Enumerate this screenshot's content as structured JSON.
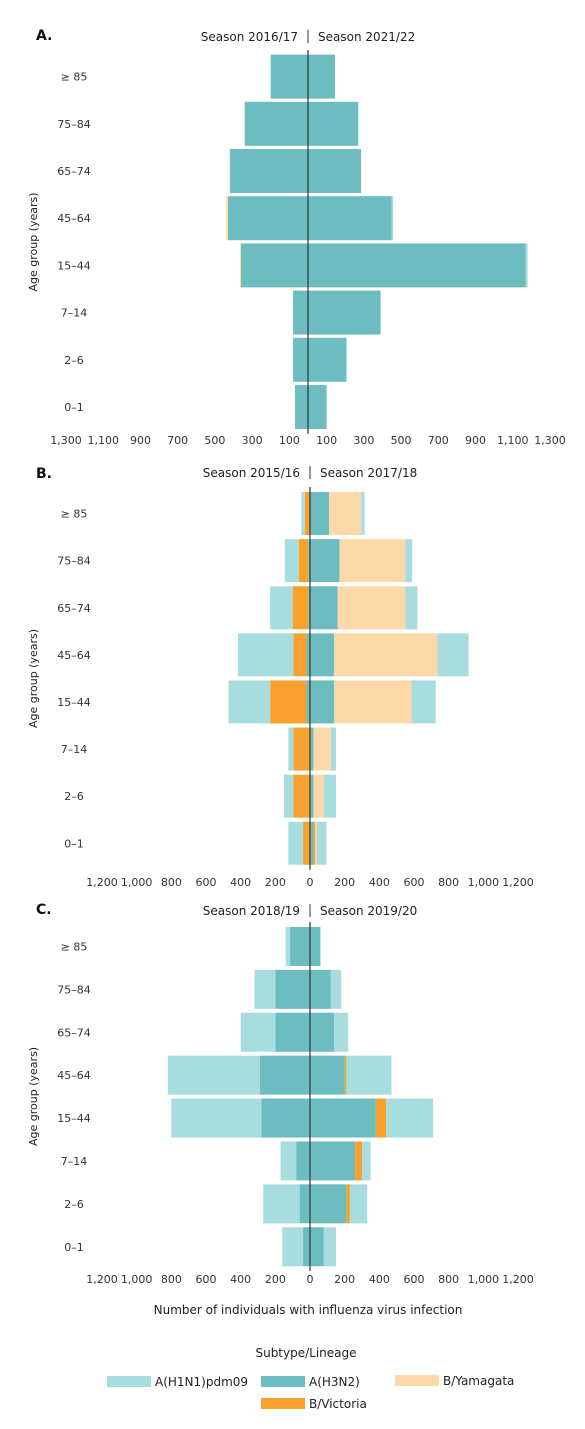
{
  "colors": {
    "A(H1N1)pdm09": "#a8dde0",
    "A(H3N2)": "#6dbdc0",
    "B/Victoria": "#f8a12e",
    "B/Yamagata": "#fdd8a8",
    "axis": "#333333"
  },
  "chart_data": [
    {
      "type": "bar",
      "panel": "A.",
      "left_title": "Season 2016/17",
      "right_title": "Season 2021/22",
      "ylabel": "Age group (years)",
      "xlabel": "",
      "xlim": [
        -1300,
        1300
      ],
      "tick_values": [
        -1300,
        -1100,
        -900,
        -700,
        -500,
        -300,
        -100,
        100,
        300,
        500,
        700,
        900,
        1100,
        1300
      ],
      "tick_labels": [
        "1,300",
        "1,100",
        "900",
        "700",
        "500",
        "300",
        "100",
        "100",
        "300",
        "500",
        "700",
        "900",
        "1,100",
        "1,300"
      ],
      "categories": [
        "≥ 85",
        "75–84",
        "65–74",
        "45–64",
        "15–44",
        "7–14",
        "2–6",
        "0–1"
      ],
      "series": [
        {
          "name": "A(H1N1)pdm09",
          "left": [
            0,
            0,
            0,
            0,
            0,
            0,
            0,
            0
          ],
          "right": [
            0,
            0,
            0,
            8,
            10,
            0,
            5,
            0
          ]
        },
        {
          "name": "A(H3N2)",
          "left": [
            200,
            340,
            420,
            430,
            360,
            80,
            80,
            70
          ],
          "right": [
            145,
            270,
            285,
            450,
            1170,
            390,
            205,
            100
          ]
        },
        {
          "name": "B/Victoria",
          "left": [
            0,
            0,
            0,
            0,
            0,
            0,
            0,
            0
          ],
          "right": [
            0,
            0,
            0,
            0,
            0,
            0,
            0,
            0
          ]
        },
        {
          "name": "B/Yamagata",
          "left": [
            0,
            0,
            0,
            10,
            5,
            0,
            0,
            0
          ],
          "right": [
            0,
            0,
            0,
            0,
            0,
            0,
            0,
            0
          ]
        }
      ]
    },
    {
      "type": "bar",
      "panel": "B.",
      "left_title": "Season 2015/16",
      "right_title": "Season 2017/18",
      "ylabel": "Age group (years)",
      "xlabel": "",
      "xlim": [
        -1200,
        1200
      ],
      "tick_values": [
        -1200,
        -1000,
        -800,
        -600,
        -400,
        -200,
        0,
        200,
        400,
        600,
        800,
        1000,
        1200
      ],
      "tick_labels": [
        "1,200",
        "1,000",
        "800",
        "600",
        "400",
        "200",
        "0",
        "200",
        "400",
        "600",
        "800",
        "1,000",
        "1,200"
      ],
      "categories": [
        "≥ 85",
        "75–84",
        "65–74",
        "45–64",
        "15–44",
        "7–14",
        "2–6",
        "0–1"
      ],
      "series": [
        {
          "name": "A(H1N1)pdm09",
          "left": [
            20,
            80,
            130,
            320,
            240,
            30,
            55,
            85
          ],
          "right": [
            20,
            40,
            70,
            180,
            140,
            30,
            70,
            55
          ]
        },
        {
          "name": "A(H3N2)",
          "left": [
            0,
            10,
            10,
            20,
            20,
            0,
            0,
            0
          ],
          "right": [
            110,
            170,
            160,
            140,
            140,
            20,
            20,
            20
          ]
        },
        {
          "name": "B/Victoria",
          "left": [
            30,
            55,
            90,
            75,
            210,
            95,
            95,
            40
          ],
          "right": [
            0,
            0,
            0,
            0,
            0,
            0,
            0,
            10
          ]
        },
        {
          "name": "B/Yamagata",
          "left": [
            0,
            0,
            0,
            0,
            0,
            0,
            0,
            0
          ],
          "right": [
            185,
            380,
            390,
            595,
            445,
            100,
            60,
            10
          ]
        }
      ]
    },
    {
      "type": "bar",
      "panel": "C.",
      "left_title": "Season 2018/19",
      "right_title": "Season 2019/20",
      "ylabel": "Age group (years)",
      "xlabel": "Number of individuals with influenza virus infection",
      "xlim": [
        -1200,
        1200
      ],
      "tick_values": [
        -1200,
        -1000,
        -800,
        -600,
        -400,
        -200,
        0,
        200,
        400,
        600,
        800,
        1000,
        1200
      ],
      "tick_labels": [
        "1,200",
        "1,000",
        "800",
        "600",
        "400",
        "200",
        "0",
        "200",
        "400",
        "600",
        "800",
        "1,000",
        "1,200"
      ],
      "categories": [
        "≥ 85",
        "75–84",
        "65–74",
        "45–64",
        "15–44",
        "7–14",
        "2–6",
        "0–1"
      ],
      "series": [
        {
          "name": "A(H1N1)pdm09",
          "left": [
            25,
            120,
            200,
            530,
            520,
            90,
            210,
            120
          ],
          "right": [
            0,
            60,
            80,
            260,
            270,
            50,
            100,
            70
          ]
        },
        {
          "name": "A(H3N2)",
          "left": [
            115,
            200,
            200,
            290,
            280,
            80,
            60,
            40
          ],
          "right": [
            60,
            120,
            140,
            200,
            380,
            260,
            210,
            80
          ]
        },
        {
          "name": "B/Victoria",
          "left": [
            0,
            0,
            0,
            0,
            0,
            0,
            0,
            0
          ],
          "right": [
            0,
            0,
            0,
            10,
            60,
            40,
            20,
            0
          ]
        },
        {
          "name": "B/Yamagata",
          "left": [
            0,
            0,
            0,
            0,
            0,
            0,
            0,
            0
          ],
          "right": [
            0,
            0,
            0,
            0,
            0,
            0,
            0,
            0
          ]
        }
      ]
    }
  ],
  "legend": {
    "title": "Subtype/Lineage",
    "items": [
      "A(H1N1)pdm09",
      "A(H3N2)",
      "B/Yamagata",
      "B/Victoria"
    ]
  }
}
